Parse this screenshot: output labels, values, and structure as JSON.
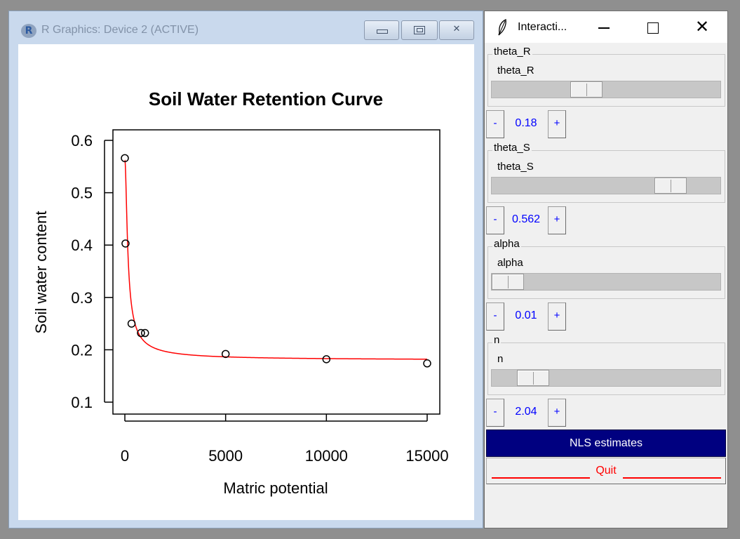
{
  "graphics_window": {
    "title": "R Graphics: Device 2 (ACTIVE)",
    "icon": "r-logo-icon",
    "buttons": {
      "minimize": "minimize-icon",
      "restore": "restore-icon",
      "close": "close-icon"
    }
  },
  "chart_data": {
    "type": "scatter",
    "title": "Soil Water Retention Curve",
    "xlabel": "Matric potential",
    "ylabel": "Soil water content",
    "xlim": [
      0,
      15000
    ],
    "ylim": [
      0.1,
      0.6
    ],
    "xticks": [
      0,
      5000,
      10000,
      15000
    ],
    "yticks": [
      0.1,
      0.2,
      0.3,
      0.4,
      0.5,
      0.6
    ],
    "xtick_labels": [
      "0",
      "5000",
      "10000",
      "15000"
    ],
    "ytick_labels": [
      "0.1",
      "0.2",
      "0.3",
      "0.4",
      "0.5",
      "0.6"
    ],
    "grid": false,
    "points": {
      "x": [
        0,
        33,
        333,
        800,
        1000,
        5000,
        10000,
        15000
      ],
      "y": [
        0.566,
        0.403,
        0.25,
        0.232,
        0.232,
        0.192,
        0.182,
        0.174
      ]
    },
    "fit_curve": {
      "color": "#ff0000",
      "model": "van Genuchten",
      "theta_R": 0.18,
      "theta_S": 0.562,
      "alpha": 0.01,
      "n": 2.04
    }
  },
  "interactive_window": {
    "title": "Interacti...",
    "icon": "feather-icon",
    "groups": [
      {
        "legend": "theta_R",
        "label": "theta_R",
        "value": "0.18",
        "position": 0.4
      },
      {
        "legend": "theta_S",
        "label": "theta_S",
        "value": "0.562",
        "position": 0.83
      },
      {
        "legend": "alpha",
        "label": "alpha",
        "value": "0.01",
        "position": 0.0
      },
      {
        "legend": "n",
        "label": "n",
        "value": "2.04",
        "position": 0.13
      }
    ],
    "minus_label": "-",
    "plus_label": "+",
    "nls_button": "NLS estimates",
    "quit_button": "Quit"
  }
}
